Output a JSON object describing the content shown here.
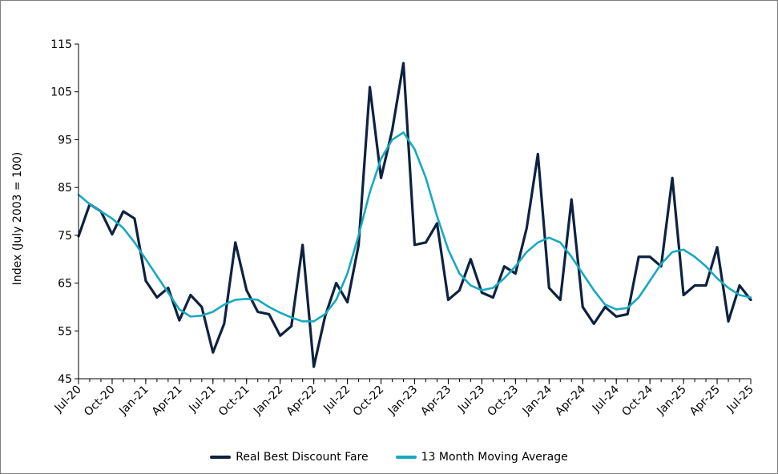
{
  "chart_data": {
    "type": "line",
    "title": "",
    "xlabel": "",
    "ylabel": "Index (July 2003 = 100)",
    "ylim": [
      45,
      115
    ],
    "yticks": [
      45,
      55,
      65,
      75,
      85,
      95,
      105,
      115
    ],
    "grid": false,
    "legend_position": "bottom",
    "tick_labels": [
      "Jul-20",
      "Oct-20",
      "Jan-21",
      "Apr-21",
      "Jul-21",
      "Oct-21",
      "Jan-22",
      "Apr-22",
      "Jul-22",
      "Oct-22",
      "Jan-23",
      "Apr-23",
      "Jul-23",
      "Oct-23",
      "Jan-24",
      "Apr-24",
      "Jul-24",
      "Oct-24",
      "Jan-25",
      "Apr-25",
      "Jul-25"
    ],
    "x": [
      "Jul-20",
      "Aug-20",
      "Sep-20",
      "Oct-20",
      "Nov-20",
      "Dec-20",
      "Jan-21",
      "Feb-21",
      "Mar-21",
      "Apr-21",
      "May-21",
      "Jun-21",
      "Jul-21",
      "Aug-21",
      "Sep-21",
      "Oct-21",
      "Nov-21",
      "Dec-21",
      "Jan-22",
      "Feb-22",
      "Mar-22",
      "Apr-22",
      "May-22",
      "Jun-22",
      "Jul-22",
      "Aug-22",
      "Sep-22",
      "Oct-22",
      "Nov-22",
      "Dec-22",
      "Jan-23",
      "Feb-23",
      "Mar-23",
      "Apr-23",
      "May-23",
      "Jun-23",
      "Jul-23",
      "Aug-23",
      "Sep-23",
      "Oct-23",
      "Nov-23",
      "Dec-23",
      "Jan-24",
      "Feb-24",
      "Mar-24",
      "Apr-24",
      "May-24",
      "Jun-24",
      "Jul-24",
      "Aug-24",
      "Sep-24",
      "Oct-24",
      "Nov-24",
      "Dec-24",
      "Jan-25",
      "Feb-25",
      "Mar-25",
      "Apr-25",
      "May-25",
      "Jun-25",
      "Jul-25"
    ],
    "series": [
      {
        "name": "Real Best Discount Fare",
        "color": "#0d2240",
        "values": [
          74.8,
          81.5,
          80.0,
          75.2,
          80.0,
          78.5,
          65.5,
          62.0,
          64.0,
          57.2,
          62.5,
          60.0,
          50.5,
          56.5,
          73.5,
          63.5,
          59.0,
          58.5,
          54.0,
          56.0,
          73.0,
          47.5,
          58.0,
          65.0,
          61.0,
          73.0,
          106.0,
          87.0,
          97.0,
          111.0,
          73.0,
          73.5,
          77.5,
          61.5,
          63.5,
          70.0,
          63.0,
          62.0,
          68.5,
          67.0,
          76.5,
          92.0,
          64.0,
          61.5,
          82.5,
          60.0,
          56.5,
          60.0,
          58.0,
          58.5,
          70.5,
          70.5,
          68.5,
          87.0,
          62.5,
          64.5,
          64.5,
          72.5,
          57.0,
          64.5,
          61.5
        ]
      },
      {
        "name": "13 Month Moving Average",
        "color": "#17a9c0",
        "values": [
          83.5,
          81.5,
          80.0,
          78.5,
          76.5,
          73.5,
          70.0,
          66.5,
          63.0,
          59.5,
          58.0,
          58.2,
          59.0,
          60.5,
          61.5,
          61.7,
          61.5,
          60.0,
          58.8,
          57.8,
          57.0,
          57.0,
          58.5,
          61.5,
          67.0,
          75.0,
          84.0,
          91.0,
          95.0,
          96.5,
          93.0,
          87.0,
          79.0,
          72.0,
          67.0,
          64.5,
          63.5,
          64.0,
          66.0,
          68.5,
          71.5,
          73.5,
          74.5,
          73.5,
          70.5,
          67.0,
          63.5,
          60.5,
          59.5,
          59.8,
          62.0,
          65.5,
          69.0,
          71.5,
          72.0,
          70.5,
          68.5,
          66.0,
          64.0,
          62.5,
          62.0
        ]
      }
    ]
  }
}
